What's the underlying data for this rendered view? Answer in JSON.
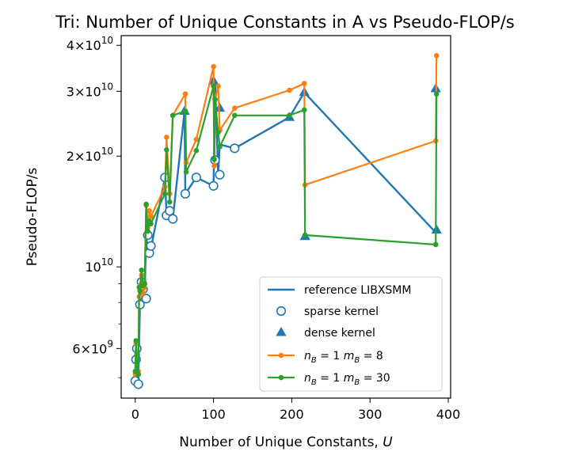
{
  "chart_data": {
    "type": "line",
    "title": "Tri: Number of Unique Constants in A vs Pseudo-FLOP/s",
    "xlabel": "Number of Unique Constants, U",
    "ylabel": "Pseudo-FLOP/s",
    "xlim": [
      -18,
      403
    ],
    "ylim": [
      4400000000.0,
      42500000000.0
    ],
    "yscale": "log",
    "grid": false,
    "legend_position": "lower-right",
    "x_ticks": [
      {
        "value": 0,
        "label": "0"
      },
      {
        "value": 100,
        "label": "100"
      },
      {
        "value": 200,
        "label": "200"
      },
      {
        "value": 300,
        "label": "300"
      },
      {
        "value": 400,
        "label": "400"
      }
    ],
    "y_ticks": [
      {
        "value": 6000000000.0,
        "base": "6",
        "exp": "9"
      },
      {
        "value": 10000000000.0,
        "base": "10",
        "exp": "10",
        "plain": true
      },
      {
        "value": 20000000000.0,
        "base": "2",
        "exp": "10"
      },
      {
        "value": 30000000000.0,
        "base": "3",
        "exp": "10"
      },
      {
        "value": 40000000000.0,
        "base": "4",
        "exp": "10"
      }
    ],
    "y_minor_ticks": [
      5000000000.0,
      7000000000.0,
      8000000000.0,
      9000000000.0
    ],
    "series": [
      {
        "name": "reference LIBXSMM",
        "color": "#1f77b4",
        "kind": "reference",
        "x": [
          0,
          1,
          2,
          4,
          6,
          8,
          10,
          12,
          14,
          16,
          18,
          20,
          38,
          40,
          44,
          48,
          63,
          64,
          78,
          100,
          101,
          102,
          106,
          108,
          127,
          197,
          216,
          384
        ],
        "y": [
          4900000000.0,
          5600000000.0,
          6000000000.0,
          4800000000.0,
          7900000000.0,
          8700000000.0,
          9100000000.0,
          8300000000.0,
          12200000000.0,
          10900000000.0,
          11500000000.0,
          11200000000.0,
          17500000000.0,
          13800000000.0,
          14200000000.0,
          13500000000.0,
          26500000000.0,
          15800000000.0,
          17500000000.0,
          16600000000.0,
          22000000000.0,
          32000000000.0,
          17800000000.0,
          21500000000.0,
          21000000000.0,
          25500000000.0,
          29800000000.0,
          12400000000.0
        ]
      },
      {
        "name": "sparse kernel",
        "color": "#1f77b4",
        "kind": "marker-circle",
        "x": [
          0,
          1,
          2,
          4,
          6,
          8,
          10,
          14,
          16,
          18,
          20,
          38,
          40,
          44,
          48,
          64,
          78,
          100,
          102,
          108,
          127
        ],
        "y": [
          4900000000.0,
          5600000000.0,
          6000000000.0,
          4800000000.0,
          7900000000.0,
          9100000000.0,
          8700000000.0,
          8200000000.0,
          12200000000.0,
          10900000000.0,
          11400000000.0,
          17500000000.0,
          13800000000.0,
          14200000000.0,
          13500000000.0,
          15800000000.0,
          17500000000.0,
          16600000000.0,
          19500000000.0,
          17800000000.0,
          21000000000.0
        ]
      },
      {
        "name": "dense kernel",
        "color": "#1f77b4",
        "kind": "marker-triangle",
        "x": [
          63,
          100,
          108,
          197,
          216,
          217,
          384,
          385
        ],
        "y": [
          26500000000.0,
          32000000000.0,
          27000000000.0,
          25500000000.0,
          29800000000.0,
          12100000000.0,
          30500000000.0,
          12600000000.0
        ]
      },
      {
        "name": "$n_B = 1\\ m_B = 8$",
        "color": "#ff7f0e",
        "kind": "line-dot",
        "x": [
          0,
          1,
          2,
          4,
          5,
          6,
          8,
          10,
          12,
          14,
          16,
          18,
          20,
          38,
          40,
          44,
          48,
          64,
          65,
          78,
          100,
          101,
          102,
          106,
          108,
          127,
          197,
          216,
          217,
          384,
          385
        ],
        "y": [
          5100000000.0,
          6200000000.0,
          5800000000.0,
          5200000000.0,
          8300000000.0,
          8900000000.0,
          9500000000.0,
          8500000000.0,
          8800000000.0,
          14700000000.0,
          12800000000.0,
          14200000000.0,
          13700000000.0,
          16500000000.0,
          22500000000.0,
          15800000000.0,
          25800000000.0,
          29500000000.0,
          19200000000.0,
          22200000000.0,
          35000000000.0,
          18800000000.0,
          28500000000.0,
          31000000000.0,
          23500000000.0,
          27000000000.0,
          30200000000.0,
          31500000000.0,
          16700000000.0,
          22000000000.0,
          37500000000.0
        ]
      },
      {
        "name": "$n_B = 1\\ m_B = 30$",
        "color": "#2ca02c",
        "kind": "line-dot",
        "x": [
          0,
          1,
          2,
          4,
          5,
          6,
          8,
          10,
          12,
          14,
          16,
          18,
          20,
          38,
          40,
          44,
          48,
          64,
          65,
          78,
          100,
          101,
          102,
          106,
          108,
          127,
          197,
          216,
          217,
          384,
          385
        ],
        "y": [
          5200000000.0,
          6300000000.0,
          5500000000.0,
          5100000000.0,
          8800000000.0,
          8600000000.0,
          9800000000.0,
          8900000000.0,
          9000000000.0,
          14800000000.0,
          12500000000.0,
          13300000000.0,
          13100000000.0,
          15800000000.0,
          20800000000.0,
          15000000000.0,
          25800000000.0,
          26500000000.0,
          18100000000.0,
          20700000000.0,
          31000000000.0,
          19600000000.0,
          28500000000.0,
          23200000000.0,
          21200000000.0,
          25800000000.0,
          25800000000.0,
          26700000000.0,
          12200000000.0,
          11500000000.0,
          29500000000.0
        ]
      }
    ]
  }
}
